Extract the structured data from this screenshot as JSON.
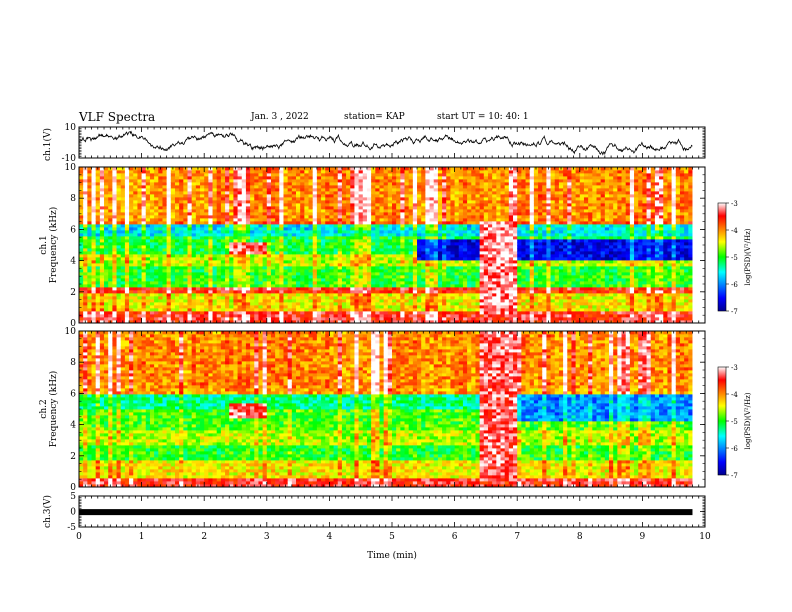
{
  "header": {
    "title": "VLF Spectra",
    "date": "Jan. 3 , 2022",
    "station": "station= KAP",
    "start_time": "start UT = 10: 40: 1"
  },
  "chart_data": [
    {
      "type": "line",
      "panel": "ch1-waveform",
      "ylabel": "ch.1(V)",
      "ylim": [
        -10,
        10
      ],
      "yticks": [
        "10",
        "-10"
      ],
      "xlim": [
        0,
        10
      ],
      "series_color": "#000000",
      "note_visible": "continuously fluctuating trace between about -8 and 8 V over 0 to 9.8 min"
    },
    {
      "type": "heatmap",
      "panel": "ch1-spectrogram",
      "ylabel": "ch.1 Frequency (kHz)",
      "ylim": [
        0,
        10
      ],
      "yticks": [
        "0",
        "2",
        "4",
        "6",
        "8",
        "10"
      ],
      "xlim": [
        0,
        10
      ],
      "data_end_min": 9.8,
      "colorbar": {
        "label": "log(PSD)(V²/Hz)",
        "range": [
          -7,
          -3
        ],
        "ticks": [
          "-3",
          "-4",
          "-5",
          "-6",
          "-7"
        ]
      },
      "bands": [
        {
          "fmin": 0,
          "fmax": 0.8,
          "level": -3.5
        },
        {
          "fmin": 0.8,
          "fmax": 2.0,
          "level": -4.4
        },
        {
          "fmin": 2.0,
          "fmax": 2.4,
          "level": -3.6
        },
        {
          "fmin": 2.4,
          "fmax": 3.6,
          "level": -5.0
        },
        {
          "fmin": 3.6,
          "fmax": 4.4,
          "level": -4.6
        },
        {
          "fmin": 4.4,
          "fmax": 5.6,
          "level": -5.1
        },
        {
          "fmin": 5.6,
          "fmax": 6.4,
          "level": -5.6
        },
        {
          "fmin": 6.4,
          "fmax": 6.6,
          "level": -3.8
        },
        {
          "fmin": 6.6,
          "fmax": 10,
          "level": -4.0
        }
      ],
      "late_quiet_band": {
        "tmin": 5.4,
        "tmax": 9.8,
        "fmin": 4.0,
        "fmax": 5.4,
        "level": -6.6
      },
      "events": [
        {
          "tmin": 2.4,
          "tmax": 3.0,
          "fmin": 4.4,
          "fmax": 5.2,
          "level": -3.3
        },
        {
          "tmin": 6.4,
          "tmax": 7.0,
          "fmin": 0.6,
          "fmax": 6.5,
          "level": -3.2
        }
      ]
    },
    {
      "type": "heatmap",
      "panel": "ch2-spectrogram",
      "ylabel": "ch.2 Frequency (kHz)",
      "ylim": [
        0,
        10
      ],
      "yticks": [
        "0",
        "2",
        "4",
        "6",
        "8",
        "10"
      ],
      "xlim": [
        0,
        10
      ],
      "data_end_min": 9.8,
      "colorbar": {
        "label": "log(PSD)(V²/Hz)",
        "range": [
          -7,
          -3
        ],
        "ticks": [
          "-3",
          "-4",
          "-5",
          "-6",
          "-7"
        ]
      },
      "bands": [
        {
          "fmin": 0,
          "fmax": 0.6,
          "level": -3.5
        },
        {
          "fmin": 0.6,
          "fmax": 1.8,
          "level": -4.4
        },
        {
          "fmin": 1.8,
          "fmax": 2.6,
          "level": -5.0
        },
        {
          "fmin": 2.6,
          "fmax": 3.6,
          "level": -4.6
        },
        {
          "fmin": 3.6,
          "fmax": 5.0,
          "level": -4.9
        },
        {
          "fmin": 5.0,
          "fmax": 6.0,
          "level": -5.3
        },
        {
          "fmin": 6.0,
          "fmax": 6.4,
          "level": -4.1
        },
        {
          "fmin": 6.4,
          "fmax": 10,
          "level": -4.0
        }
      ],
      "late_quiet_band": {
        "tmin": 7.0,
        "tmax": 9.8,
        "fmin": 4.2,
        "fmax": 6.0,
        "level": -6.0
      },
      "events": [
        {
          "tmin": 2.4,
          "tmax": 3.0,
          "fmin": 4.4,
          "fmax": 5.4,
          "level": -3.3
        },
        {
          "tmin": 6.4,
          "tmax": 7.0,
          "fmin": 0.4,
          "fmax": 10,
          "level": -3.3
        }
      ]
    },
    {
      "type": "line",
      "panel": "ch3-waveform",
      "ylabel": "ch.3(V)",
      "ylim": [
        -5,
        5
      ],
      "yticks": [
        "5",
        "0",
        "-5"
      ],
      "xlim": [
        0,
        10
      ],
      "xticks": [
        "0",
        "1",
        "2",
        "3",
        "4",
        "5",
        "6",
        "7",
        "8",
        "9",
        "10"
      ],
      "xlabel": "Time (min)",
      "level": -0.2,
      "data_end_min": 9.8
    }
  ]
}
